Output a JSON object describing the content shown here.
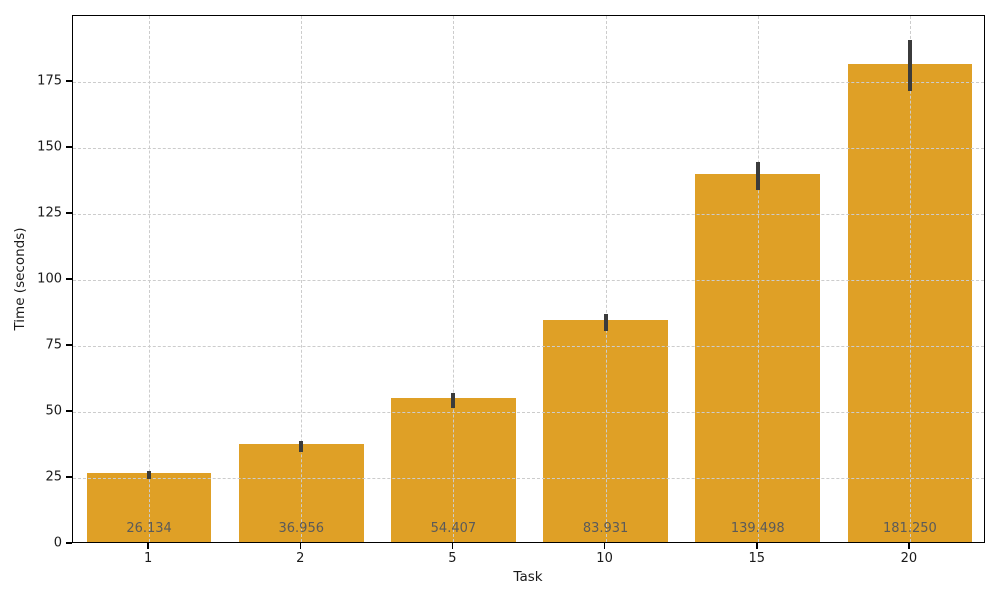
{
  "chart_data": {
    "type": "bar",
    "title": "",
    "xlabel": "Task",
    "ylabel": "Time (seconds)",
    "categories": [
      "1",
      "2",
      "5",
      "10",
      "15",
      "20"
    ],
    "values": [
      26.134,
      36.956,
      54.407,
      83.931,
      139.498,
      181.25
    ],
    "bar_labels": [
      "26.134",
      "36.956",
      "54.407",
      "83.931",
      "139.498",
      "181.250"
    ],
    "errors": [
      1.5,
      2.2,
      2.8,
      3.2,
      5.3,
      9.5
    ],
    "ylim": [
      0,
      200
    ],
    "yticks": [
      0,
      25,
      50,
      75,
      100,
      125,
      150,
      175
    ],
    "ytick_labels": [
      "0",
      "25",
      "50",
      "75",
      "100",
      "125",
      "150",
      "175"
    ],
    "grid": true,
    "legend": null,
    "colors": {
      "bar": "#DFA026",
      "error_bar": "#3B3B3B",
      "value_label": "#5A5A5A",
      "gridline": "#CCCCCC",
      "spine": "#000000",
      "tick_text": "#1A1A1A"
    }
  }
}
